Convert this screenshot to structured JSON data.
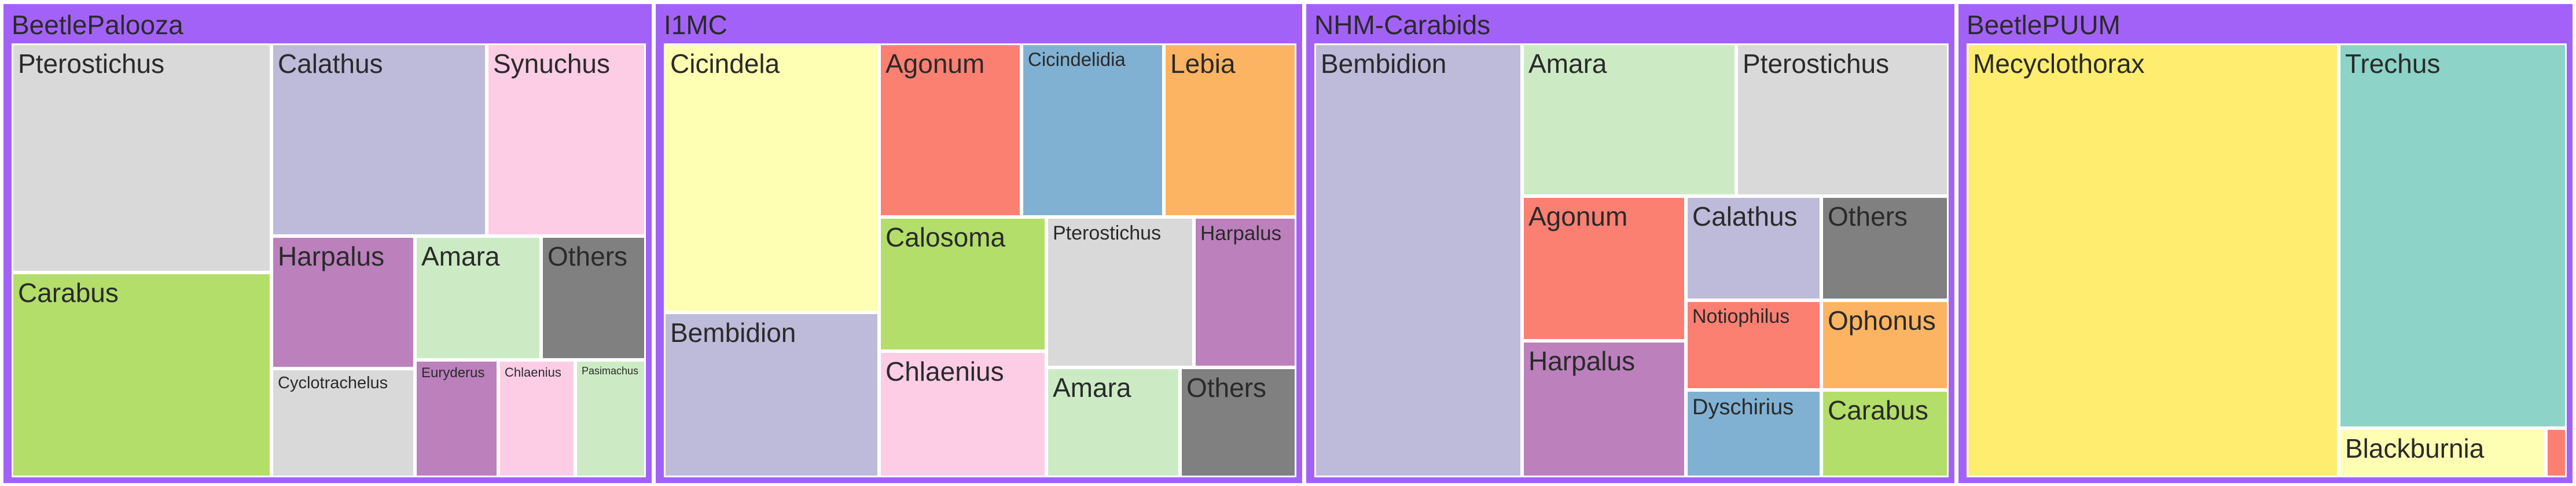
{
  "chart_data": [
    {
      "type": "treemap",
      "title": "BeetlePalooza",
      "nodes": [
        {
          "label": "Pterostichus",
          "value": 1000,
          "color": "#d9d9d9"
        },
        {
          "label": "Carabus",
          "value": 790,
          "color": "#b3de69"
        },
        {
          "label": "Calathus",
          "value": 775,
          "color": "#bebada"
        },
        {
          "label": "Synuchus",
          "value": 675,
          "color": "#fccde5"
        },
        {
          "label": "Harpalus",
          "value": 345,
          "color": "#bc80bd"
        },
        {
          "label": "Amara",
          "value": 310,
          "color": "#ccebc5"
        },
        {
          "label": "Others",
          "value": 255,
          "color": "#808080"
        },
        {
          "label": "Cyclotrachelus",
          "value": 270,
          "color": "#d9d9d9"
        },
        {
          "label": "Euryderus",
          "value": 145,
          "color": "#bc80bd"
        },
        {
          "label": "Chlaenius",
          "value": 135,
          "color": "#fccde5"
        },
        {
          "label": "Pasimachus",
          "value": 125,
          "color": "#ccebc5"
        }
      ]
    },
    {
      "type": "treemap",
      "title": "I1MC",
      "nodes": [
        {
          "label": "Cicindela",
          "value": 1000,
          "color": "#ffffb3"
        },
        {
          "label": "Bembidion",
          "value": 590,
          "color": "#bebada"
        },
        {
          "label": "Agonum",
          "value": 355,
          "color": "#fb8072"
        },
        {
          "label": "Cicindelidia",
          "value": 355,
          "color": "#80b1d3"
        },
        {
          "label": "Lebia",
          "value": 355,
          "color": "#fdb462"
        },
        {
          "label": "Calosoma",
          "value": 375,
          "color": "#b3de69"
        },
        {
          "label": "Chlaenius",
          "value": 345,
          "color": "#fccde5"
        },
        {
          "label": "Pterostichus",
          "value": 340,
          "color": "#d9d9d9"
        },
        {
          "label": "Harpalus",
          "value": 265,
          "color": "#bc80bd"
        },
        {
          "label": "Amara",
          "value": 245,
          "color": "#ccebc5"
        },
        {
          "label": "Others",
          "value": 215,
          "color": "#808080"
        }
      ]
    },
    {
      "type": "treemap",
      "title": "NHM-Carabids",
      "nodes": [
        {
          "label": "Bembidion",
          "value": 1000,
          "color": "#bebada"
        },
        {
          "label": "Amara",
          "value": 350,
          "color": "#ccebc5"
        },
        {
          "label": "Pterostichus",
          "value": 345,
          "color": "#d9d9d9"
        },
        {
          "label": "Agonum",
          "value": 270,
          "color": "#fb8072"
        },
        {
          "label": "Harpalus",
          "value": 245,
          "color": "#bc80bd"
        },
        {
          "label": "Calathus",
          "value": 180,
          "color": "#bebada"
        },
        {
          "label": "Others",
          "value": 165,
          "color": "#808080"
        },
        {
          "label": "Notiophilus",
          "value": 130,
          "color": "#fb8072"
        },
        {
          "label": "Ophonus",
          "value": 120,
          "color": "#fdb462"
        },
        {
          "label": "Dyschirius",
          "value": 130,
          "color": "#80b1d3"
        },
        {
          "label": "Carabus",
          "value": 120,
          "color": "#b3de69"
        }
      ]
    },
    {
      "type": "treemap",
      "title": "BeetlePUUM",
      "nodes": [
        {
          "label": "Mecyclothorax",
          "value": 1000,
          "color": "#ffed6f"
        },
        {
          "label": "Trechus",
          "value": 550,
          "color": "#8dd3c7"
        },
        {
          "label": "Blackburnia",
          "value": 62,
          "color": "#ffffb3"
        },
        {
          "label": "",
          "value": 5,
          "color": "#fb8072"
        }
      ]
    }
  ]
}
